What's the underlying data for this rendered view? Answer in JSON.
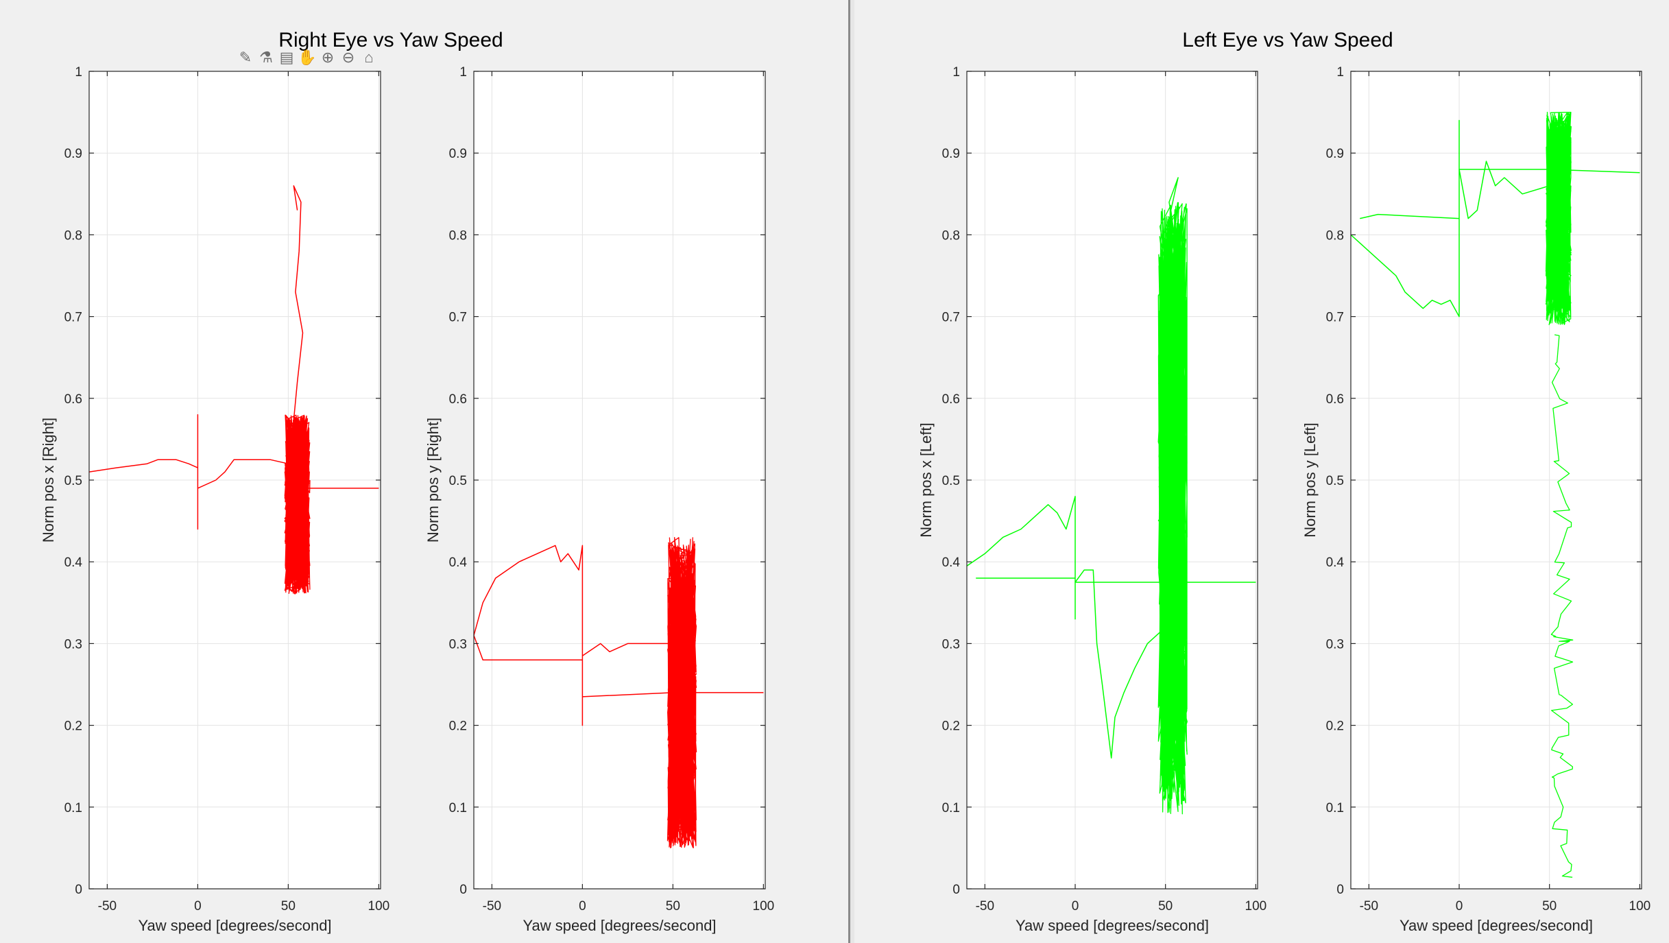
{
  "figures": [
    {
      "title": "Right Eye vs Yaw Speed",
      "toolbar": [
        {
          "name": "brush-icon",
          "glyph": "✎"
        },
        {
          "name": "data-cursor-icon",
          "glyph": "⚗"
        },
        {
          "name": "datatip-icon",
          "glyph": "▤"
        },
        {
          "name": "pan-icon",
          "glyph": "✋"
        },
        {
          "name": "zoom-in-icon",
          "glyph": "⊕"
        },
        {
          "name": "zoom-out-icon",
          "glyph": "⊖"
        },
        {
          "name": "home-icon",
          "glyph": "⌂"
        }
      ]
    },
    {
      "title": "Left Eye vs Yaw Speed"
    }
  ],
  "chart_data": [
    {
      "type": "line",
      "figure": "Right Eye vs Yaw Speed",
      "xlabel": "Yaw speed [degrees/second]",
      "ylabel": "Norm pos x [Right]",
      "xlim": [
        -60,
        101
      ],
      "ylim": [
        0,
        1
      ],
      "xticks": [
        -50,
        0,
        50,
        100
      ],
      "yticks": [
        0,
        0.1,
        0.2,
        0.3,
        0.4,
        0.5,
        0.6,
        0.7,
        0.8,
        0.9,
        1
      ],
      "grid": true,
      "color": "#ff0000",
      "series": [
        {
          "x": [
            -60,
            -45,
            -28,
            -22,
            -12,
            -5,
            0,
            0,
            0,
            0,
            0,
            0,
            10,
            15,
            20,
            40,
            50,
            52
          ],
          "y": [
            0.51,
            0.515,
            0.52,
            0.525,
            0.525,
            0.52,
            0.515,
            0.58,
            0.44,
            0.51,
            0.495,
            0.49,
            0.5,
            0.51,
            0.525,
            0.525,
            0.52,
            0.5
          ]
        },
        {
          "x": [
            50,
            100
          ],
          "y": [
            0.49,
            0.49
          ]
        },
        {
          "x": [
            52,
            55,
            58,
            54,
            56,
            57,
            53,
            55
          ],
          "y": [
            0.55,
            0.62,
            0.68,
            0.73,
            0.78,
            0.84,
            0.86,
            0.83
          ]
        }
      ],
      "cluster": {
        "center_x": 55,
        "spread_x": 7,
        "y_min": 0.36,
        "y_max": 0.58
      }
    },
    {
      "type": "line",
      "figure": "Right Eye vs Yaw Speed",
      "xlabel": "Yaw speed [degrees/second]",
      "ylabel": "Norm pos y [Right]",
      "xlim": [
        -60,
        101
      ],
      "ylim": [
        0,
        1
      ],
      "xticks": [
        -50,
        0,
        50,
        100
      ],
      "yticks": [
        0,
        0.1,
        0.2,
        0.3,
        0.4,
        0.5,
        0.6,
        0.7,
        0.8,
        0.9,
        1
      ],
      "grid": true,
      "color": "#ff0000",
      "series": [
        {
          "x": [
            -60,
            -55,
            -48,
            -35,
            -25,
            -15,
            -12,
            -8,
            -5,
            -2,
            0,
            0,
            0,
            0,
            0,
            -38,
            -55,
            -60
          ],
          "y": [
            0.31,
            0.35,
            0.38,
            0.4,
            0.41,
            0.42,
            0.4,
            0.41,
            0.4,
            0.39,
            0.42,
            0.2,
            0.28,
            0.28,
            0.28,
            0.28,
            0.28,
            0.31
          ]
        },
        {
          "x": [
            0,
            10,
            15,
            25,
            35,
            50
          ],
          "y": [
            0.285,
            0.3,
            0.29,
            0.3,
            0.3,
            0.3
          ]
        },
        {
          "x": [
            0,
            50,
            100
          ],
          "y": [
            0.235,
            0.24,
            0.24
          ]
        }
      ],
      "cluster": {
        "center_x": 55,
        "spread_x": 8,
        "y_min": 0.05,
        "y_max": 0.43
      }
    },
    {
      "type": "line",
      "figure": "Left Eye vs Yaw Speed",
      "xlabel": "Yaw speed [degrees/second]",
      "ylabel": "Norm pos x [Left]",
      "xlim": [
        -60,
        101
      ],
      "ylim": [
        0,
        1
      ],
      "xticks": [
        -50,
        0,
        50,
        100
      ],
      "yticks": [
        0,
        0.1,
        0.2,
        0.3,
        0.4,
        0.5,
        0.6,
        0.7,
        0.8,
        0.9,
        1
      ],
      "grid": true,
      "color": "#00ff00",
      "series": [
        {
          "x": [
            -60,
            -50,
            -40,
            -30,
            -25,
            -20,
            -15,
            -10,
            -5,
            0,
            0,
            0,
            0,
            0,
            -55
          ],
          "y": [
            0.395,
            0.41,
            0.43,
            0.44,
            0.45,
            0.46,
            0.47,
            0.46,
            0.44,
            0.48,
            0.33,
            0.38,
            0.38,
            0.38,
            0.38
          ]
        },
        {
          "x": [
            0,
            5,
            10,
            12,
            15,
            20,
            22,
            27,
            33,
            40,
            50
          ],
          "y": [
            0.375,
            0.39,
            0.39,
            0.3,
            0.25,
            0.16,
            0.21,
            0.24,
            0.27,
            0.3,
            0.32
          ]
        },
        {
          "x": [
            0,
            50,
            100
          ],
          "y": [
            0.375,
            0.375,
            0.375
          ]
        },
        {
          "x": [
            50,
            55,
            52,
            57,
            53,
            56
          ],
          "y": [
            0.75,
            0.8,
            0.84,
            0.87,
            0.83,
            0.78
          ]
        }
      ],
      "cluster": {
        "center_x": 54,
        "spread_x": 8,
        "y_min": 0.09,
        "y_max": 0.84
      }
    },
    {
      "type": "line",
      "figure": "Left Eye vs Yaw Speed",
      "xlabel": "Yaw speed [degrees/second]",
      "ylabel": "Norm pos y [Left]",
      "xlim": [
        -60,
        101
      ],
      "ylim": [
        0,
        1
      ],
      "xticks": [
        -50,
        0,
        50,
        100
      ],
      "yticks": [
        0,
        0.1,
        0.2,
        0.3,
        0.4,
        0.5,
        0.6,
        0.7,
        0.8,
        0.9,
        1
      ],
      "grid": true,
      "color": "#00ff00",
      "series": [
        {
          "x": [
            -60,
            -55,
            -50,
            -40,
            -35,
            -30,
            -25,
            -20,
            -15,
            -10,
            -5,
            0,
            0,
            0,
            0,
            0,
            -45,
            -55
          ],
          "y": [
            0.8,
            0.79,
            0.78,
            0.76,
            0.75,
            0.73,
            0.72,
            0.71,
            0.72,
            0.715,
            0.72,
            0.7,
            0.94,
            0.82,
            0.82,
            0.82,
            0.825,
            0.82
          ]
        },
        {
          "x": [
            0,
            5,
            10,
            15,
            20,
            25,
            35,
            50
          ],
          "y": [
            0.88,
            0.82,
            0.83,
            0.89,
            0.86,
            0.87,
            0.85,
            0.86
          ]
        },
        {
          "x": [
            0,
            50,
            100
          ],
          "y": [
            0.88,
            0.88,
            0.876
          ]
        }
      ],
      "cluster": {
        "center_x": 55,
        "spread_x": 7,
        "y_min": 0.69,
        "y_max": 0.95
      },
      "trail": {
        "center_x": 57,
        "spread_x": 6,
        "y_min": 0.0,
        "y_max": 0.69
      }
    }
  ]
}
